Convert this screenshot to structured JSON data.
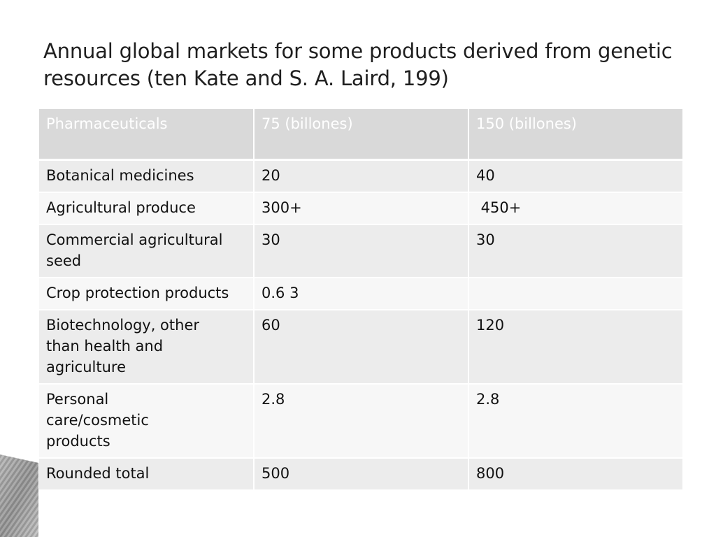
{
  "title": "Annual global markets for some products derived from genetic resources (ten Kate and S. A. Laird, 199)",
  "table": {
    "header": [
      "Pharmaceuticals",
      "75 (billones)",
      "150 (billones)"
    ],
    "rows": [
      [
        "Botanical medicines",
        "20",
        "40"
      ],
      [
        "Agricultural produce",
        "300+",
        " 450+"
      ],
      [
        "Commercial agricultural seed",
        "30",
        "30"
      ],
      [
        "Crop protection products",
        "0.6 3",
        ""
      ],
      [
        "Biotechnology, other than health and agriculture",
        "60",
        "120"
      ],
      [
        "Personal care/cosmetic products",
        "2.8",
        "2.8"
      ],
      [
        "Rounded total",
        "500",
        "800"
      ]
    ]
  },
  "colors": {
    "header_bg": "#d9d9d9",
    "row_odd_bg": "#ececec",
    "row_even_bg": "#f7f7f7"
  }
}
